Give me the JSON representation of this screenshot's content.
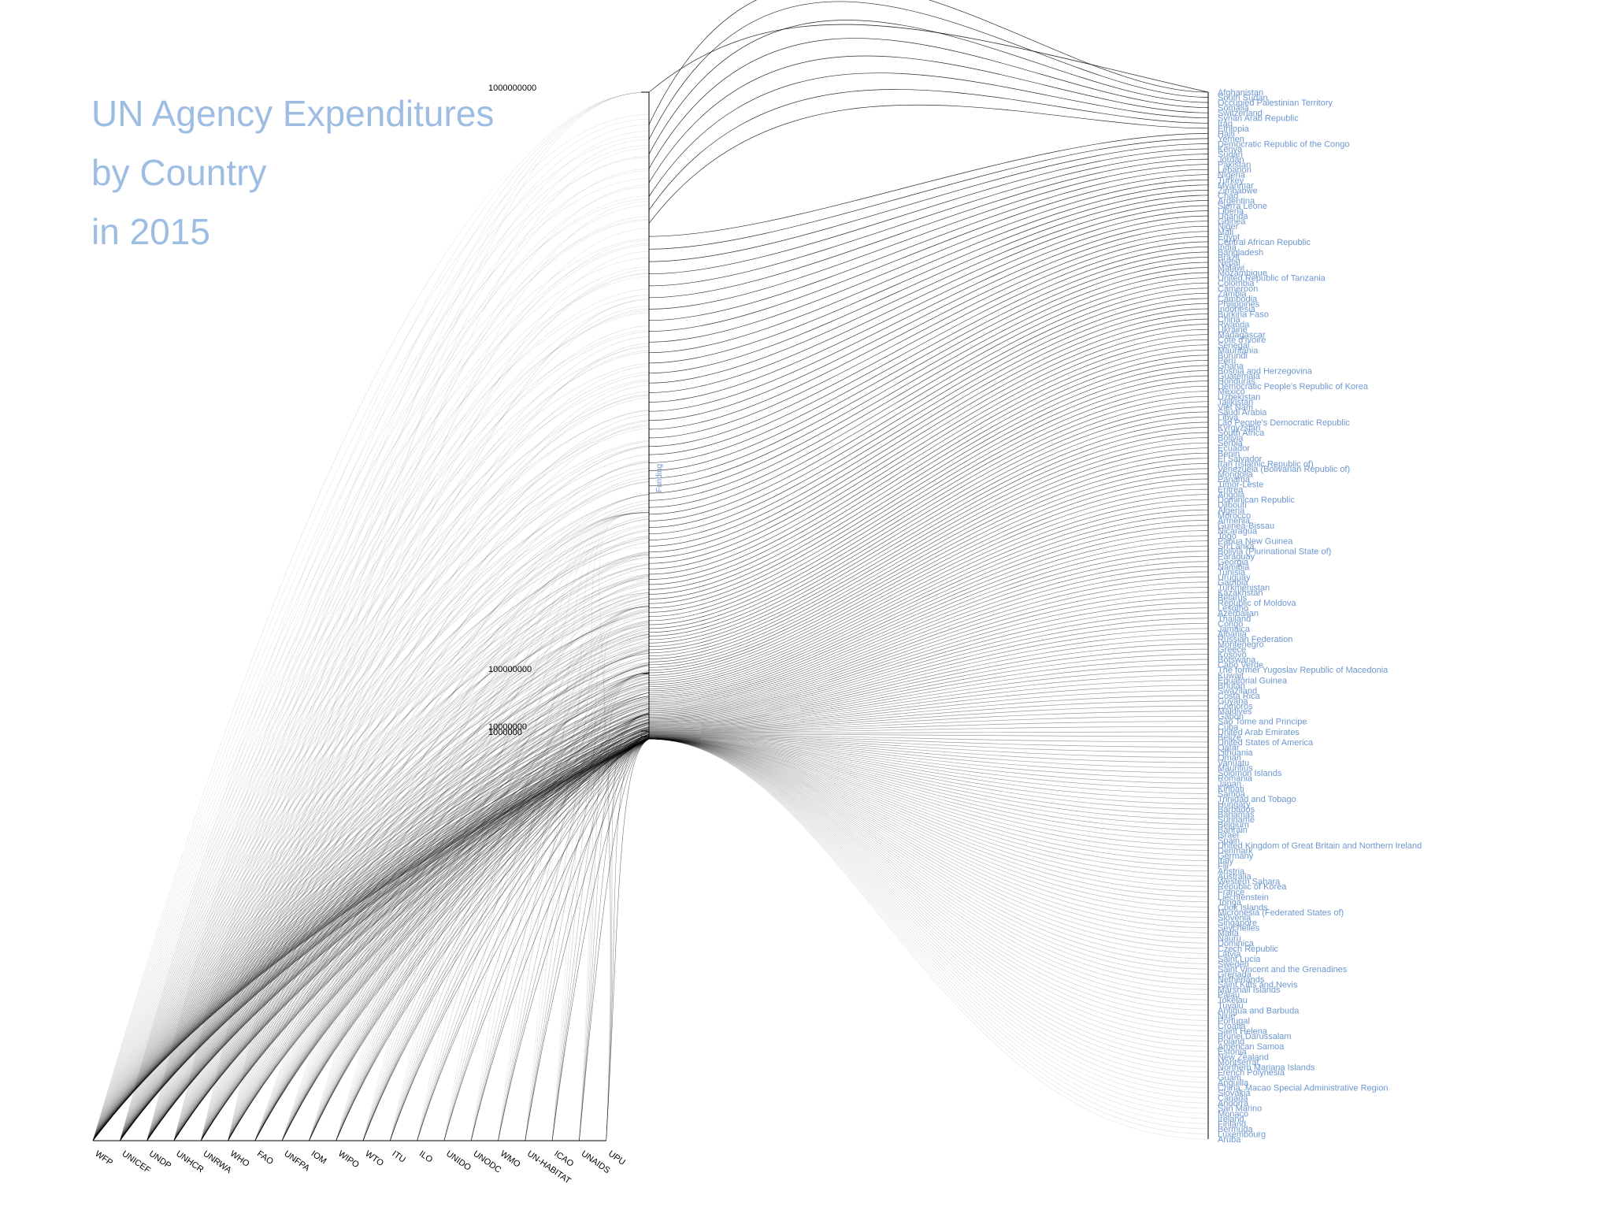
{
  "chart_data": {
    "type": "hive-flow",
    "title_lines": [
      "UN Agency Expenditures",
      "by Country",
      "in 2015"
    ],
    "colors": {
      "title": "#9dbde3",
      "country_label": "#6c97cf",
      "link": "#000000",
      "axis": "#000000"
    },
    "funding_axis": {
      "label": "Funding",
      "scale": "log",
      "ticks": [
        {
          "value": 1000000000,
          "label": "1000000000"
        },
        {
          "value": 100000000,
          "label": "100000000"
        },
        {
          "value": 10000000,
          "label": "10000000"
        },
        {
          "value": 1000000,
          "label": "1000000"
        }
      ]
    },
    "agencies": [
      "WFP",
      "UNICEF",
      "UNDP",
      "UNHCR",
      "UNRWA",
      "WHO",
      "FAO",
      "UNFPA",
      "IOM",
      "WIPO",
      "WTO",
      "ITU",
      "ILO",
      "UNIDO",
      "UNODC",
      "WMO",
      "UN-HABITAT",
      "ICAO",
      "UNAIDS",
      "UPU"
    ],
    "countries": [
      "Afghanistan",
      "South Sudan",
      "Occupied Palestinian Territory",
      "Somalia",
      "Switzerland",
      "Syrian Arab Republic",
      "Iraq",
      "Ethiopia",
      "Haiti",
      "Yemen",
      "Democratic Republic of the Congo",
      "Kenya",
      "Sudan",
      "Jordan",
      "Pakistan",
      "Lebanon",
      "Nigeria",
      "Turkey",
      "Myanmar",
      "Zimbabwe",
      "Chad",
      "Argentina",
      "Sierra Leone",
      "Liberia",
      "Uganda",
      "Guinea",
      "Niger",
      "Mali",
      "Egypt",
      "Central African Republic",
      "India",
      "Bangladesh",
      "Brazil",
      "Nepal",
      "Malawi",
      "Mozambique",
      "United Republic of Tanzania",
      "Colombia",
      "Cameroon",
      "Zambia",
      "Cambodia",
      "Philippines",
      "Indonesia",
      "Burkina Faso",
      "China",
      "Rwanda",
      "Ukraine",
      "Madagascar",
      "Cote d'Ivoire",
      "Senegal",
      "Mauritania",
      "Burundi",
      "Peru",
      "Ghana",
      "Bosnia and Herzegovina",
      "Guatemala",
      "Honduras",
      "Democratic People's Republic of Korea",
      "Mexico",
      "Uzbekistan",
      "Tajikistan",
      "Viet Nam",
      "Saudi Arabia",
      "Libya",
      "Lao People's Democratic Republic",
      "Kyrgyzstan",
      "South Africa",
      "Bolivia",
      "Serbia",
      "Ecuador",
      "Benin",
      "El Salvador",
      "Iran (Islamic Republic of)",
      "Venezuela (Bolivarian Republic of)",
      "Mongolia",
      "Panama",
      "Timor-Leste",
      "Eritrea",
      "Angola",
      "Dominican Republic",
      "Djibouti",
      "Algeria",
      "Morocco",
      "Armenia",
      "Guinea-Bissau",
      "Nicaragua",
      "Togo",
      "Papua New Guinea",
      "Sri Lanka",
      "Bolivia (Plurinational State of)",
      "Paraguay",
      "Georgia",
      "Namibia",
      "Tunisia",
      "Uruguay",
      "Gambia",
      "Turkmenistan",
      "Kazakhstan",
      "Belarus",
      "Republic of Moldova",
      "Lesotho",
      "Azerbaijan",
      "Thailand",
      "Congo",
      "Jamaica",
      "Albania",
      "Russian Federation",
      "Montenegro",
      "Greece",
      "Kosovo",
      "Botswana",
      "Cabo Verde",
      "The former Yugoslav Republic of Macedonia",
      "Kuwait",
      "Equatorial Guinea",
      "Bhutan",
      "Swaziland",
      "Costa Rica",
      "Guyana",
      "Comoros",
      "Maldives",
      "Gabon",
      "Sao Tome and Principe",
      "Cuba",
      "United Arab Emirates",
      "Belize",
      "United States of America",
      "Qatar",
      "Lithuania",
      "Oman",
      "Vanuatu",
      "Mauritius",
      "Solomon Islands",
      "Romania",
      "Japan",
      "Kiribati",
      "Samoa",
      "Trinidad and Tobago",
      "Hungary",
      "Barbados",
      "Bahamas",
      "Suriname",
      "Belgium",
      "Bahrain",
      "Israel",
      "Spain",
      "United Kingdom of Great Britain and Northern Ireland",
      "Denmark",
      "Germany",
      "Italy",
      "Fiji",
      "Austria",
      "Australia",
      "Western Sahara",
      "Republic of Korea",
      "France",
      "Liechtenstein",
      "Tonga",
      "Cook Islands",
      "Micronesia (Federated States of)",
      "Slovenia",
      "Singapore",
      "Seychelles",
      "Malta",
      "Nauru",
      "Dominica",
      "Czech Republic",
      "Latvia",
      "Saint Lucia",
      "Sweden",
      "Saint Vincent and the Grenadines",
      "Grenada",
      "Netherlands",
      "Saint Kitts and Nevis",
      "Marshall Islands",
      "Palau",
      "Tokelau",
      "Tuvalu",
      "Antigua and Barbuda",
      "Niue",
      "Portugal",
      "Croatia",
      "Saint Helena",
      "Brunei Darussalam",
      "Poland",
      "American Samoa",
      "Estonia",
      "New Zealand",
      "Montserrat",
      "Northern Mariana Islands",
      "French Polynesia",
      "Guam",
      "Anguilla",
      "China, Macao Special Administrative Region",
      "Slovakia",
      "Canada",
      "Andorra",
      "San Marino",
      "Monaco",
      "Ireland",
      "Finland",
      "Bermuda",
      "Luxembourg",
      "Aruba"
    ]
  }
}
